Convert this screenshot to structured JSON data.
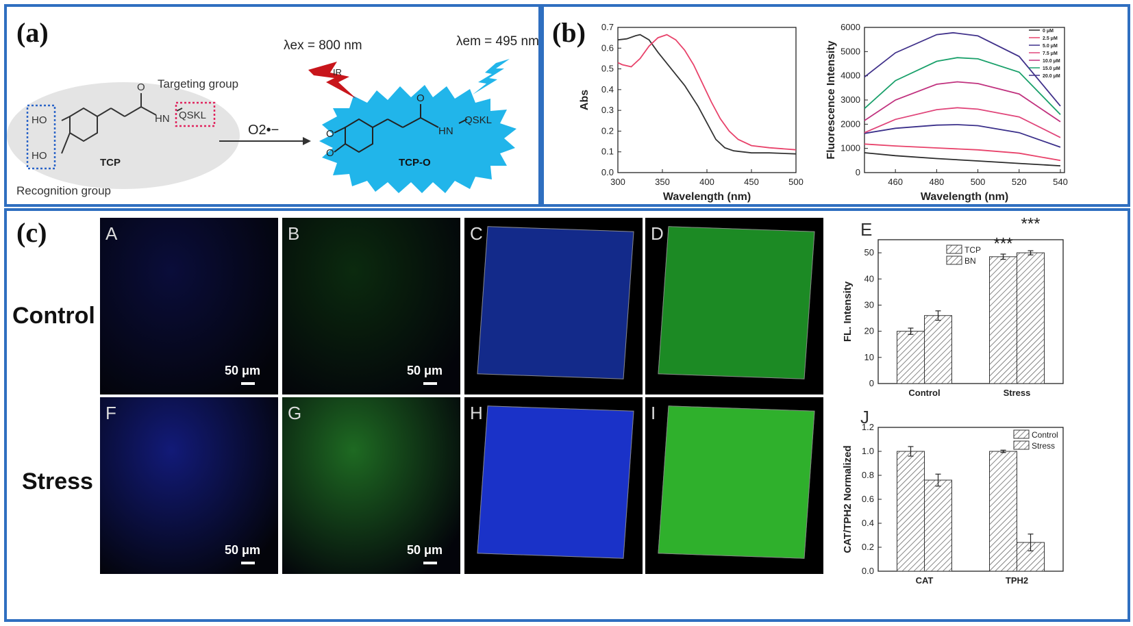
{
  "panel_a": {
    "label": "(a)",
    "excitation": "λex = 800 nm",
    "emission": "λem = 495 nm",
    "ir": "IR",
    "targeting_group": "Targeting group",
    "recognition_group": "Recognition group",
    "reagent": "O2•−",
    "probe_name": "TCP",
    "product_name": "TCP-O",
    "ho_top": "HO",
    "ho_bottom": "HO",
    "o_label": "O",
    "hn_label": "HN",
    "nh_label": "HN",
    "qskl": "QSKL",
    "qskl_product": "QSKL"
  },
  "panel_b": {
    "label": "(b)"
  },
  "panel_c": {
    "label": "(c)",
    "row_control": "Control",
    "row_stress": "Stress",
    "tiles": [
      {
        "letter": "A",
        "scale": "50 μm",
        "color": "#0a0d3a"
      },
      {
        "letter": "B",
        "scale": "50 μm",
        "color": "#0b2a0e"
      },
      {
        "letter": "C",
        "scale": "",
        "color": "#132a8a"
      },
      {
        "letter": "D",
        "scale": "",
        "color": "#1c8a24"
      },
      {
        "letter": "F",
        "scale": "50 μm",
        "color": "#121a78"
      },
      {
        "letter": "G",
        "scale": "50 μm",
        "color": "#1e6a22"
      },
      {
        "letter": "H",
        "scale": "",
        "color": "#1a32c8"
      },
      {
        "letter": "I",
        "scale": "",
        "color": "#2fb02c"
      }
    ]
  },
  "chart_data": [
    {
      "type": "line",
      "xlabel": "Wavelength (nm)",
      "ylabel": "Abs",
      "xlim": [
        300,
        500
      ],
      "ylim": [
        0.0,
        0.7
      ],
      "xticks": [
        300,
        350,
        400,
        450,
        500
      ],
      "yticks": [
        0.0,
        0.1,
        0.2,
        0.3,
        0.4,
        0.5,
        0.6,
        0.7
      ],
      "series": [
        {
          "color": "#333333",
          "x": [
            300,
            310,
            320,
            325,
            335,
            345,
            360,
            375,
            390,
            400,
            410,
            420,
            430,
            440,
            450,
            470,
            500
          ],
          "y": [
            0.64,
            0.645,
            0.66,
            0.665,
            0.64,
            0.58,
            0.5,
            0.42,
            0.32,
            0.24,
            0.16,
            0.12,
            0.105,
            0.1,
            0.095,
            0.095,
            0.09
          ]
        },
        {
          "color": "#e8426a",
          "x": [
            300,
            305,
            315,
            325,
            335,
            345,
            355,
            365,
            375,
            385,
            395,
            405,
            415,
            425,
            435,
            450,
            470,
            500
          ],
          "y": [
            0.53,
            0.52,
            0.51,
            0.55,
            0.61,
            0.65,
            0.665,
            0.64,
            0.59,
            0.52,
            0.43,
            0.34,
            0.26,
            0.2,
            0.16,
            0.13,
            0.12,
            0.11
          ]
        }
      ]
    },
    {
      "type": "line",
      "xlabel": "Wavelength (nm)",
      "ylabel": "Fluorescence Intensity",
      "xlim": [
        445,
        542
      ],
      "ylim": [
        0,
        6000
      ],
      "xticks": [
        460,
        480,
        500,
        520,
        540
      ],
      "yticks": [
        0,
        1000,
        2000,
        3000,
        4000,
        5000,
        6000
      ],
      "series": [
        {
          "name": "0 μM",
          "color": "#2b2b2b",
          "x": [
            445,
            460,
            480,
            500,
            520,
            540
          ],
          "y": [
            820,
            700,
            580,
            480,
            380,
            280
          ]
        },
        {
          "name": "2.5 μM",
          "color": "#e8426a",
          "x": [
            445,
            460,
            480,
            500,
            520,
            540
          ],
          "y": [
            1180,
            1100,
            1020,
            940,
            800,
            500
          ]
        },
        {
          "name": "5.0 μM",
          "color": "#3a2f8a",
          "x": [
            445,
            460,
            480,
            490,
            500,
            520,
            540
          ],
          "y": [
            1620,
            1830,
            1960,
            1980,
            1940,
            1650,
            1050
          ]
        },
        {
          "name": "7.5 μM",
          "color": "#e0457a",
          "x": [
            445,
            460,
            480,
            490,
            500,
            520,
            540
          ],
          "y": [
            1650,
            2200,
            2600,
            2680,
            2620,
            2300,
            1450
          ]
        },
        {
          "name": "10.0 μM",
          "color": "#c0317e",
          "x": [
            445,
            460,
            480,
            490,
            500,
            520,
            540
          ],
          "y": [
            2150,
            3000,
            3650,
            3750,
            3680,
            3250,
            2100
          ]
        },
        {
          "name": "15.0 μM",
          "color": "#19a06a",
          "x": [
            445,
            460,
            480,
            490,
            500,
            520,
            540
          ],
          "y": [
            2650,
            3800,
            4600,
            4750,
            4700,
            4150,
            2400
          ]
        },
        {
          "name": "20.0 μM",
          "color": "#40318a",
          "x": [
            445,
            460,
            480,
            488,
            500,
            520,
            540
          ],
          "y": [
            3950,
            4950,
            5700,
            5780,
            5650,
            4800,
            2750
          ]
        }
      ]
    },
    {
      "type": "bar",
      "panel_letter": "E",
      "ylabel": "FL. Intensity",
      "categories": [
        "Control",
        "Stress"
      ],
      "ylim": [
        0,
        55
      ],
      "yticks": [
        0,
        10,
        20,
        30,
        40,
        50
      ],
      "series": [
        {
          "name": "TCP",
          "values": [
            20,
            48.5
          ],
          "errors": [
            1.2,
            1.0
          ]
        },
        {
          "name": "BN",
          "values": [
            26,
            50
          ],
          "errors": [
            1.8,
            0.8
          ]
        }
      ],
      "annotations": [
        "***",
        "***"
      ]
    },
    {
      "type": "bar",
      "panel_letter": "J",
      "ylabel": "CAT/TPH2 Normalized",
      "categories": [
        "CAT",
        "TPH2"
      ],
      "ylim": [
        0,
        1.2
      ],
      "yticks": [
        0.0,
        0.2,
        0.4,
        0.6,
        0.8,
        1.0,
        1.2
      ],
      "series": [
        {
          "name": "Control",
          "values": [
            1.0,
            1.0
          ],
          "errors": [
            0.04,
            0.01
          ]
        },
        {
          "name": "Stress",
          "values": [
            0.76,
            0.24
          ],
          "errors": [
            0.05,
            0.07
          ]
        }
      ]
    }
  ]
}
